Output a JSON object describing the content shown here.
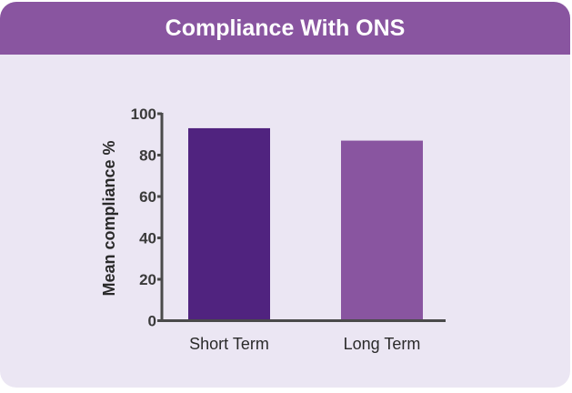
{
  "chart_data": {
    "type": "bar",
    "title": "Compliance With ONS",
    "categories": [
      "Short Term",
      "Long Term"
    ],
    "values": [
      93,
      87
    ],
    "colors": [
      "#50237f",
      "#8955a0"
    ],
    "xlabel": "",
    "ylabel": "Mean compliance %",
    "ylim": [
      0,
      100
    ],
    "yticks": [
      0,
      20,
      40,
      60,
      80,
      100
    ],
    "grid": false
  }
}
